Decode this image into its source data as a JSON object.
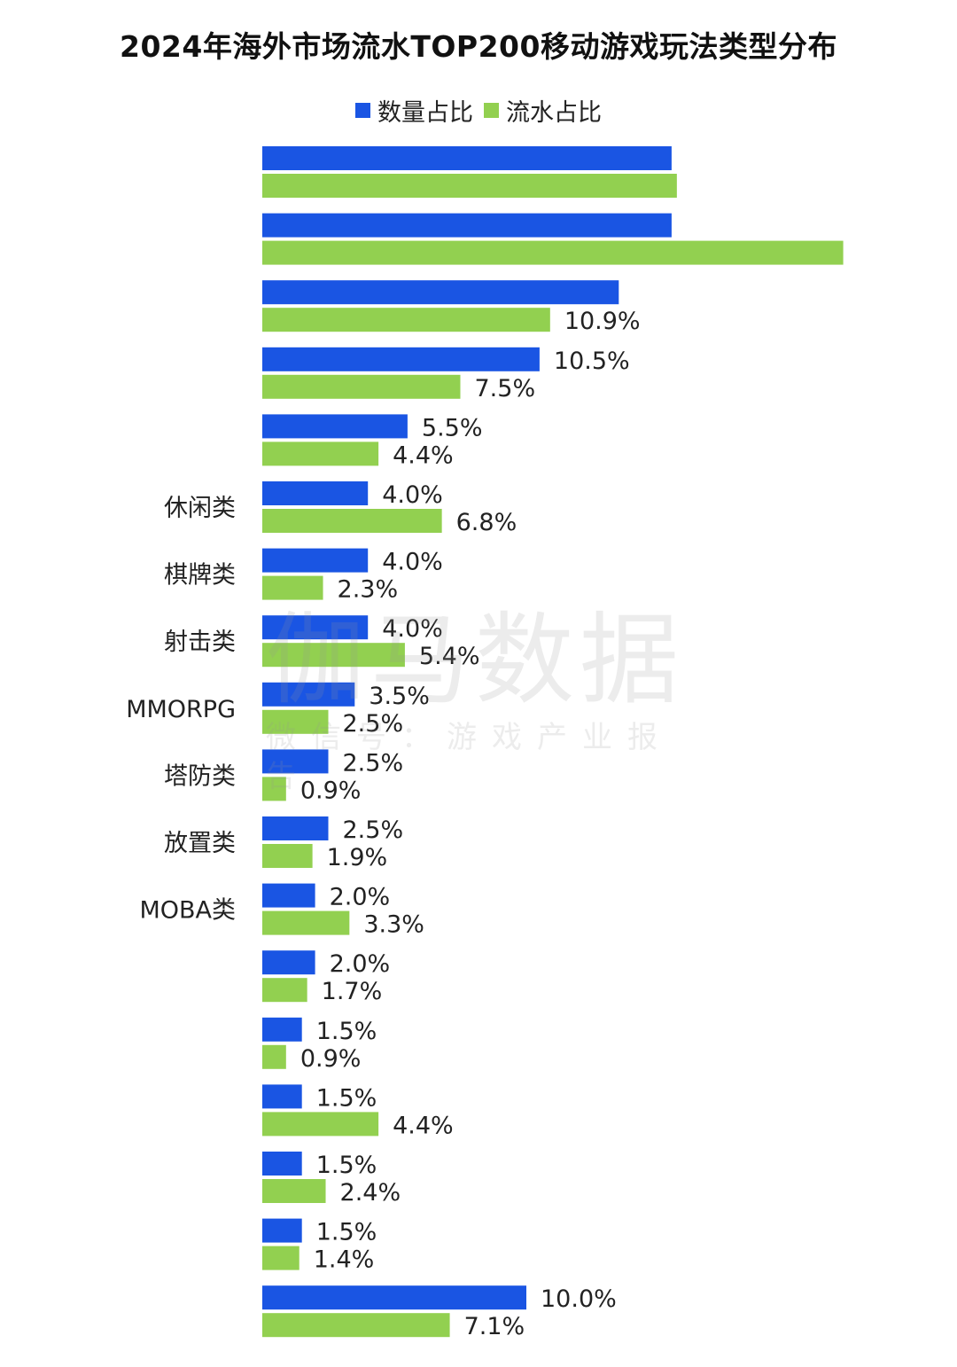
{
  "title": "2024年海外市场流水TOP200移动游戏玩法类型分布",
  "legend": {
    "count_label": "数量占比",
    "revenue_label": "流水占比"
  },
  "watermark": {
    "main": "伽马数据",
    "sub": "微信号：游戏产业报告"
  },
  "colors": {
    "count": "#1A55E3",
    "revenue": "#92D050",
    "text": "#222222"
  },
  "chart_data": {
    "type": "bar",
    "orientation": "horizontal",
    "title": "2024年海外市场流水TOP200移动游戏玩法类型分布",
    "categories": [
      "",
      "",
      "",
      "",
      "",
      "休闲类",
      "棋牌类",
      "射击类",
      "MMORPG",
      "塔防类",
      "放置类",
      "MOBA类",
      "",
      "",
      "",
      "",
      "",
      ""
    ],
    "series": [
      {
        "name": "数量占比",
        "values": [
          15.5,
          15.5,
          13.5,
          10.5,
          5.5,
          4.0,
          4.0,
          4.0,
          3.5,
          2.5,
          2.5,
          2.0,
          2.0,
          1.5,
          1.5,
          1.5,
          1.5,
          10.0
        ],
        "labels": [
          "",
          "",
          "",
          "10.5%",
          "5.5%",
          "4.0%",
          "4.0%",
          "4.0%",
          "3.5%",
          "2.5%",
          "2.5%",
          "2.0%",
          "2.0%",
          "1.5%",
          "1.5%",
          "1.5%",
          "1.5%",
          "10.0%"
        ]
      },
      {
        "name": "流水占比",
        "values": [
          15.7,
          22.0,
          10.9,
          7.5,
          4.4,
          6.8,
          2.3,
          5.4,
          2.5,
          0.9,
          1.9,
          3.3,
          1.7,
          0.9,
          4.4,
          2.4,
          1.4,
          7.1
        ],
        "labels": [
          "",
          "",
          "10.9%",
          "7.5%",
          "4.4%",
          "6.8%",
          "2.3%",
          "5.4%",
          "2.5%",
          "0.9%",
          "1.9%",
          "3.3%",
          "1.7%",
          "0.9%",
          "4.4%",
          "2.4%",
          "1.4%",
          "7.1%"
        ]
      }
    ],
    "value_axis": {
      "unit": "%",
      "min": 0,
      "visible": false
    },
    "grid": false,
    "legend_position": "top-center"
  }
}
